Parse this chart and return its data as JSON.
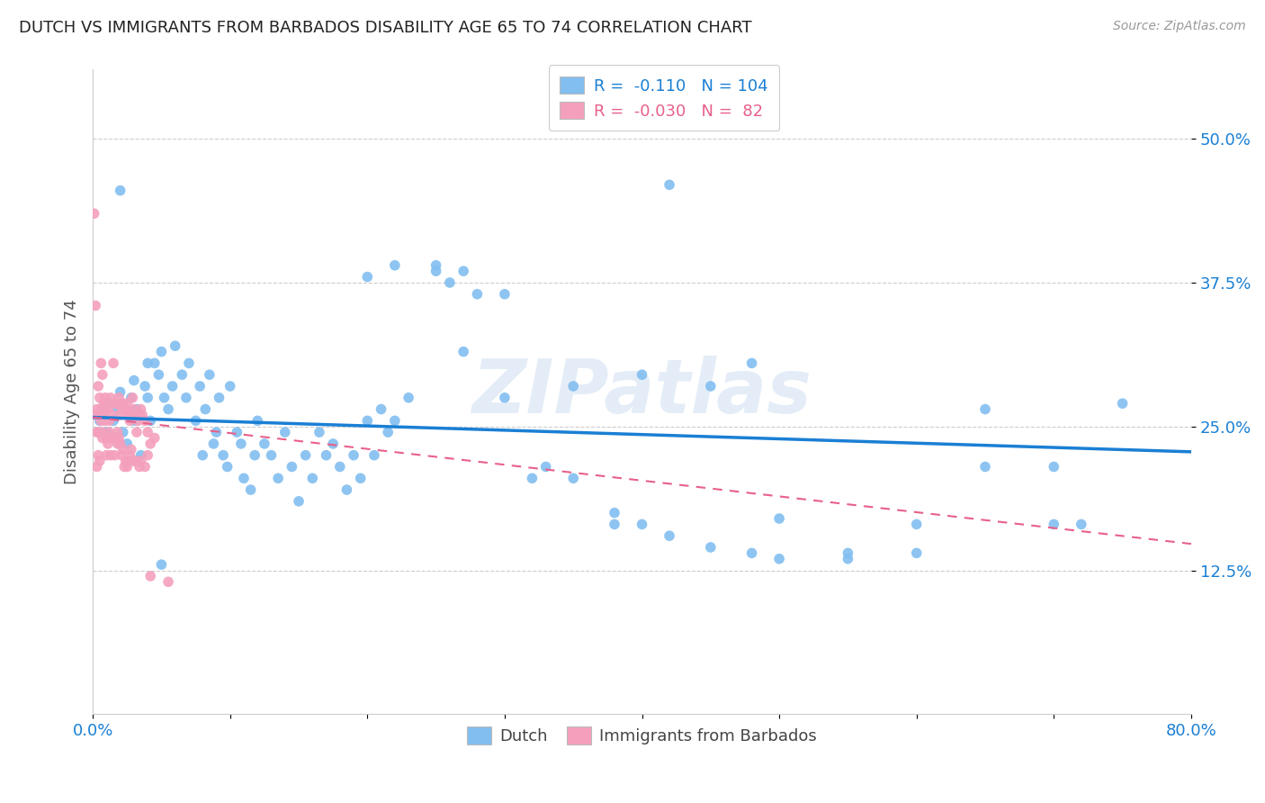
{
  "title": "DUTCH VS IMMIGRANTS FROM BARBADOS DISABILITY AGE 65 TO 74 CORRELATION CHART",
  "source": "Source: ZipAtlas.com",
  "ylabel": "Disability Age 65 to 74",
  "ytick_labels": [
    "12.5%",
    "25.0%",
    "37.5%",
    "50.0%"
  ],
  "ytick_values": [
    0.125,
    0.25,
    0.375,
    0.5
  ],
  "xlim": [
    0.0,
    0.8
  ],
  "ylim": [
    0.0,
    0.56
  ],
  "dutch_color": "#82bef0",
  "barbados_color": "#f4a0bc",
  "dutch_line_color": "#1a7fd4",
  "barbados_line_color": "#e8608a",
  "watermark": "ZIPatlas",
  "dutch_x": [
    0.005,
    0.008,
    0.01,
    0.012,
    0.015,
    0.018,
    0.02,
    0.022,
    0.025,
    0.028,
    0.03,
    0.032,
    0.035,
    0.038,
    0.04,
    0.042,
    0.045,
    0.048,
    0.05,
    0.052,
    0.055,
    0.058,
    0.06,
    0.065,
    0.068,
    0.07,
    0.075,
    0.078,
    0.08,
    0.082,
    0.085,
    0.088,
    0.09,
    0.092,
    0.095,
    0.098,
    0.1,
    0.105,
    0.108,
    0.11,
    0.115,
    0.118,
    0.12,
    0.125,
    0.13,
    0.135,
    0.14,
    0.145,
    0.15,
    0.155,
    0.16,
    0.165,
    0.17,
    0.175,
    0.18,
    0.185,
    0.19,
    0.195,
    0.2,
    0.205,
    0.21,
    0.215,
    0.22,
    0.23,
    0.25,
    0.26,
    0.27,
    0.28,
    0.3,
    0.32,
    0.35,
    0.38,
    0.4,
    0.42,
    0.45,
    0.48,
    0.5,
    0.55,
    0.6,
    0.65,
    0.7,
    0.72,
    0.75,
    0.2,
    0.22,
    0.25,
    0.27,
    0.3,
    0.33,
    0.35,
    0.38,
    0.4,
    0.42,
    0.45,
    0.48,
    0.5,
    0.55,
    0.6,
    0.65,
    0.7,
    0.02,
    0.03,
    0.04,
    0.05
  ],
  "dutch_y": [
    0.255,
    0.265,
    0.245,
    0.27,
    0.255,
    0.265,
    0.28,
    0.245,
    0.235,
    0.275,
    0.255,
    0.265,
    0.225,
    0.285,
    0.275,
    0.255,
    0.305,
    0.295,
    0.315,
    0.275,
    0.265,
    0.285,
    0.32,
    0.295,
    0.275,
    0.305,
    0.255,
    0.285,
    0.225,
    0.265,
    0.295,
    0.235,
    0.245,
    0.275,
    0.225,
    0.215,
    0.285,
    0.245,
    0.235,
    0.205,
    0.195,
    0.225,
    0.255,
    0.235,
    0.225,
    0.205,
    0.245,
    0.215,
    0.185,
    0.225,
    0.205,
    0.245,
    0.225,
    0.235,
    0.215,
    0.195,
    0.225,
    0.205,
    0.255,
    0.225,
    0.265,
    0.245,
    0.255,
    0.275,
    0.39,
    0.375,
    0.385,
    0.365,
    0.275,
    0.205,
    0.205,
    0.175,
    0.165,
    0.155,
    0.145,
    0.14,
    0.135,
    0.14,
    0.165,
    0.265,
    0.215,
    0.165,
    0.27,
    0.38,
    0.39,
    0.385,
    0.315,
    0.365,
    0.215,
    0.285,
    0.165,
    0.295,
    0.46,
    0.285,
    0.305,
    0.17,
    0.135,
    0.14,
    0.215,
    0.165,
    0.455,
    0.29,
    0.305,
    0.13
  ],
  "barbados_x": [
    0.001,
    0.002,
    0.003,
    0.004,
    0.005,
    0.006,
    0.007,
    0.008,
    0.009,
    0.01,
    0.011,
    0.012,
    0.013,
    0.014,
    0.015,
    0.016,
    0.017,
    0.018,
    0.019,
    0.02,
    0.021,
    0.022,
    0.023,
    0.024,
    0.025,
    0.026,
    0.027,
    0.028,
    0.029,
    0.03,
    0.031,
    0.032,
    0.033,
    0.034,
    0.035,
    0.036,
    0.038,
    0.04,
    0.042,
    0.045,
    0.003,
    0.004,
    0.005,
    0.006,
    0.007,
    0.008,
    0.009,
    0.01,
    0.011,
    0.012,
    0.013,
    0.014,
    0.015,
    0.016,
    0.017,
    0.018,
    0.019,
    0.02,
    0.021,
    0.022,
    0.023,
    0.024,
    0.025,
    0.026,
    0.027,
    0.028,
    0.03,
    0.032,
    0.034,
    0.035,
    0.038,
    0.04,
    0.042,
    0.002,
    0.003,
    0.004,
    0.005,
    0.006,
    0.007,
    0.008,
    0.009,
    0.01,
    0.055
  ],
  "barbados_y": [
    0.435,
    0.355,
    0.265,
    0.285,
    0.275,
    0.265,
    0.295,
    0.27,
    0.275,
    0.27,
    0.265,
    0.255,
    0.275,
    0.26,
    0.305,
    0.27,
    0.27,
    0.245,
    0.275,
    0.26,
    0.265,
    0.27,
    0.265,
    0.265,
    0.27,
    0.26,
    0.255,
    0.26,
    0.275,
    0.265,
    0.26,
    0.245,
    0.255,
    0.26,
    0.265,
    0.26,
    0.255,
    0.245,
    0.235,
    0.24,
    0.215,
    0.225,
    0.22,
    0.305,
    0.245,
    0.26,
    0.265,
    0.225,
    0.235,
    0.245,
    0.225,
    0.24,
    0.24,
    0.225,
    0.24,
    0.235,
    0.24,
    0.235,
    0.225,
    0.23,
    0.215,
    0.22,
    0.215,
    0.22,
    0.225,
    0.23,
    0.22,
    0.22,
    0.215,
    0.22,
    0.215,
    0.225,
    0.12,
    0.26,
    0.245,
    0.245,
    0.26,
    0.255,
    0.24,
    0.26,
    0.255,
    0.24,
    0.115
  ],
  "dutch_trendline_x": [
    0.0,
    0.8
  ],
  "dutch_trendline_y": [
    0.258,
    0.228
  ],
  "barbados_trendline_x": [
    0.0,
    0.8
  ],
  "barbados_trendline_y": [
    0.258,
    0.148
  ]
}
